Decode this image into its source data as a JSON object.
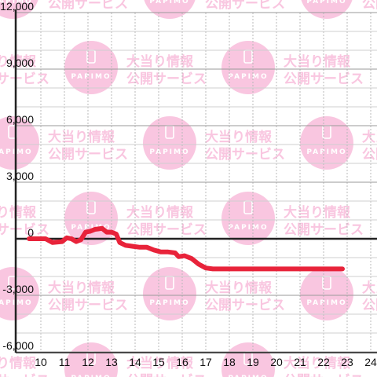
{
  "chart_data": {
    "type": "line",
    "title": "",
    "xlabel": "",
    "ylabel": "",
    "xlim": [
      9.5,
      24.3
    ],
    "ylim": [
      -6200,
      12000
    ],
    "x_ticks": [
      10,
      11,
      12,
      13,
      14,
      15,
      16,
      17,
      18,
      19,
      20,
      21,
      22,
      23,
      24
    ],
    "x_tick_labels": [
      "10",
      "11",
      "12",
      "13",
      "14",
      "15",
      "16",
      "17",
      "18",
      "19",
      "20",
      "21",
      "22",
      "23",
      "24"
    ],
    "y_ticks": [
      -6000,
      -3000,
      0,
      3000,
      6000,
      9000,
      12000
    ],
    "y_tick_labels": [
      "-6,000",
      "-3,000",
      "0",
      "3,000",
      "6,000",
      "9,000",
      "12,000"
    ],
    "grid": true,
    "series": [
      {
        "color": "#e8233a",
        "x": [
          9.5,
          10.2,
          10.5,
          10.9,
          11.1,
          11.3,
          11.5,
          11.7,
          11.9,
          12.1,
          12.3,
          12.6,
          12.8,
          13.0,
          13.2,
          13.35,
          13.6,
          13.9,
          14.2,
          14.5,
          14.8,
          15.1,
          15.4,
          15.7,
          15.85,
          16.1,
          16.4,
          16.7,
          17.0,
          17.3,
          18.0,
          19.0,
          20.0,
          21.0,
          22.0,
          22.8
        ],
        "y": [
          0,
          0,
          -200,
          -150,
          50,
          0,
          -150,
          -50,
          350,
          400,
          500,
          550,
          350,
          350,
          250,
          -200,
          -350,
          -400,
          -450,
          -450,
          -600,
          -700,
          -700,
          -750,
          -950,
          -900,
          -1050,
          -1350,
          -1550,
          -1600,
          -1600,
          -1600,
          -1600,
          -1600,
          -1600,
          -1600
        ]
      }
    ],
    "watermark": {
      "badge_text": "PAPIMO",
      "line1": "大当り情報",
      "line2": "公開サービス",
      "color": "#f9c6e0"
    }
  }
}
